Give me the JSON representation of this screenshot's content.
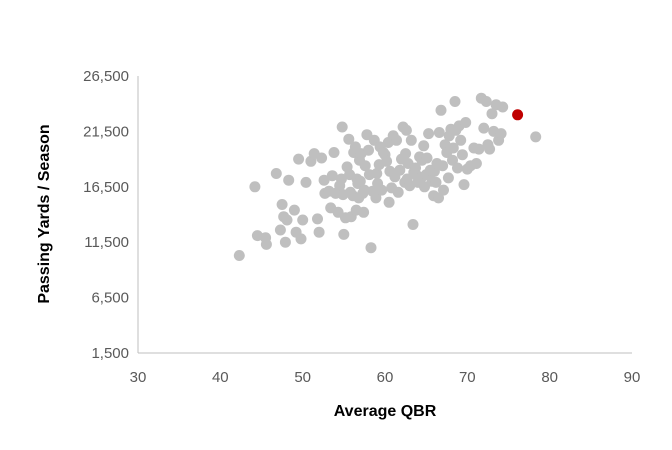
{
  "chart_data": {
    "type": "scatter",
    "title": "",
    "xlabel": "Average QBR",
    "ylabel": "Passing Yards / Season",
    "xlim": [
      30,
      90
    ],
    "ylim": [
      1500,
      26500
    ],
    "x_ticks": [
      30,
      40,
      50,
      60,
      70,
      80,
      90
    ],
    "x_tick_labels": [
      "30",
      "40",
      "50",
      "60",
      "70",
      "80",
      "90"
    ],
    "y_ticks": [
      1500,
      6500,
      11500,
      16500,
      21500,
      26500
    ],
    "y_tick_labels": [
      "1,500",
      "6,500",
      "11,500",
      "16,500",
      "21,500",
      "26,500"
    ],
    "grid": false,
    "legend": "none",
    "colors": {
      "points": "#bfbfbf",
      "highlight": "#c00000",
      "axis": "#bfbfbf",
      "tick_text": "#595959"
    },
    "series": [
      {
        "points": [
          [
            42.3,
            10300
          ],
          [
            44.2,
            16500
          ],
          [
            44.5,
            12100
          ],
          [
            45.5,
            11900
          ],
          [
            45.6,
            11300
          ],
          [
            46.8,
            17700
          ],
          [
            47.3,
            12600
          ],
          [
            47.5,
            14900
          ],
          [
            47.7,
            13800
          ],
          [
            47.9,
            11500
          ],
          [
            48.1,
            13500
          ],
          [
            48.3,
            17100
          ],
          [
            49.0,
            14400
          ],
          [
            49.2,
            12400
          ],
          [
            49.5,
            19000
          ],
          [
            49.8,
            11800
          ],
          [
            50.0,
            13500
          ],
          [
            50.4,
            16900
          ],
          [
            51.0,
            18800
          ],
          [
            51.4,
            19500
          ],
          [
            51.8,
            13600
          ],
          [
            52.0,
            12400
          ],
          [
            52.3,
            19100
          ],
          [
            52.6,
            17100
          ],
          [
            52.7,
            15900
          ],
          [
            53.2,
            16100
          ],
          [
            53.4,
            14600
          ],
          [
            53.6,
            17500
          ],
          [
            53.8,
            19600
          ],
          [
            54.0,
            15900
          ],
          [
            54.3,
            14200
          ],
          [
            54.5,
            16600
          ],
          [
            54.7,
            17200
          ],
          [
            54.8,
            21900
          ],
          [
            54.9,
            15800
          ],
          [
            55.0,
            12200
          ],
          [
            55.2,
            13700
          ],
          [
            55.4,
            18300
          ],
          [
            55.6,
            20800
          ],
          [
            55.7,
            17600
          ],
          [
            55.8,
            16000
          ],
          [
            55.9,
            13800
          ],
          [
            56.1,
            15700
          ],
          [
            56.2,
            19600
          ],
          [
            56.4,
            20100
          ],
          [
            56.5,
            14400
          ],
          [
            56.6,
            17200
          ],
          [
            56.7,
            16800
          ],
          [
            56.8,
            15500
          ],
          [
            56.9,
            18900
          ],
          [
            57.0,
            17000
          ],
          [
            57.1,
            19500
          ],
          [
            57.3,
            15900
          ],
          [
            57.4,
            14200
          ],
          [
            57.5,
            16200
          ],
          [
            57.6,
            18400
          ],
          [
            57.8,
            21200
          ],
          [
            58.0,
            19800
          ],
          [
            58.1,
            17600
          ],
          [
            58.3,
            11000
          ],
          [
            58.5,
            16100
          ],
          [
            58.7,
            20700
          ],
          [
            58.9,
            15500
          ],
          [
            59.0,
            17700
          ],
          [
            59.1,
            16800
          ],
          [
            59.3,
            18500
          ],
          [
            59.4,
            20100
          ],
          [
            59.6,
            16200
          ],
          [
            59.8,
            19600
          ],
          [
            60.0,
            19400
          ],
          [
            60.2,
            18800
          ],
          [
            60.4,
            20500
          ],
          [
            60.5,
            15100
          ],
          [
            60.6,
            17900
          ],
          [
            60.8,
            16400
          ],
          [
            61.0,
            21100
          ],
          [
            61.2,
            17400
          ],
          [
            61.4,
            20700
          ],
          [
            61.6,
            16000
          ],
          [
            61.8,
            18000
          ],
          [
            62.0,
            19000
          ],
          [
            62.2,
            21900
          ],
          [
            62.4,
            16900
          ],
          [
            62.5,
            19500
          ],
          [
            62.6,
            21600
          ],
          [
            62.7,
            17200
          ],
          [
            62.8,
            18600
          ],
          [
            63.0,
            16600
          ],
          [
            63.2,
            20700
          ],
          [
            63.4,
            13100
          ],
          [
            63.5,
            17800
          ],
          [
            63.7,
            18200
          ],
          [
            63.9,
            17500
          ],
          [
            64.0,
            16900
          ],
          [
            64.2,
            19200
          ],
          [
            64.4,
            17300
          ],
          [
            64.5,
            18900
          ],
          [
            64.7,
            20200
          ],
          [
            64.8,
            16500
          ],
          [
            65.0,
            17600
          ],
          [
            65.1,
            19100
          ],
          [
            65.3,
            21300
          ],
          [
            65.5,
            18000
          ],
          [
            65.7,
            17000
          ],
          [
            65.9,
            15700
          ],
          [
            66.0,
            17900
          ],
          [
            66.2,
            16900
          ],
          [
            66.3,
            18600
          ],
          [
            66.5,
            15500
          ],
          [
            66.6,
            21400
          ],
          [
            66.8,
            23400
          ],
          [
            67.0,
            18400
          ],
          [
            67.1,
            16200
          ],
          [
            67.3,
            20300
          ],
          [
            67.5,
            19600
          ],
          [
            67.7,
            17300
          ],
          [
            67.8,
            21100
          ],
          [
            68.0,
            21700
          ],
          [
            68.2,
            18900
          ],
          [
            68.3,
            20000
          ],
          [
            68.5,
            24200
          ],
          [
            68.6,
            21600
          ],
          [
            68.8,
            18200
          ],
          [
            69.0,
            22000
          ],
          [
            69.2,
            20700
          ],
          [
            69.4,
            19400
          ],
          [
            69.6,
            16700
          ],
          [
            69.8,
            22300
          ],
          [
            70.0,
            18100
          ],
          [
            70.4,
            18400
          ],
          [
            70.8,
            20000
          ],
          [
            71.1,
            18600
          ],
          [
            71.4,
            19900
          ],
          [
            71.7,
            24500
          ],
          [
            72.0,
            21800
          ],
          [
            72.3,
            24200
          ],
          [
            72.5,
            20300
          ],
          [
            72.7,
            19900
          ],
          [
            73.0,
            23100
          ],
          [
            73.2,
            21500
          ],
          [
            73.5,
            23900
          ],
          [
            73.8,
            20700
          ],
          [
            74.1,
            21300
          ],
          [
            74.3,
            23700
          ],
          [
            78.3,
            21000
          ]
        ]
      },
      {
        "points": [
          [
            76.1,
            23000
          ]
        ]
      }
    ]
  }
}
